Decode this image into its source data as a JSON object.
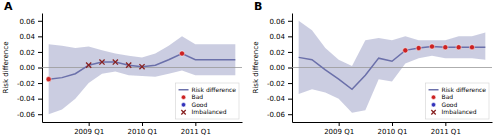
{
  "chart_data": [
    {
      "type": "line",
      "title": "A",
      "y_label": "Risk difference",
      "x": [
        0,
        1,
        2,
        3,
        4,
        5,
        6,
        7,
        8,
        9,
        10,
        11,
        12,
        13,
        14
      ],
      "xlim": [
        -0.5,
        14.5
      ],
      "xticks": [
        {
          "value": 3,
          "label": "2009 Q1"
        },
        {
          "value": 7,
          "label": "2010 Q1"
        },
        {
          "value": 11,
          "label": "2011 Q1"
        }
      ],
      "ylim": [
        -0.07,
        0.07
      ],
      "yticks": [
        -0.06,
        -0.04,
        -0.02,
        {
          "value": 0,
          "label": "0.00"
        },
        0.02,
        0.04,
        0.06
      ],
      "hlines": [
        0
      ],
      "legend": "lower right",
      "series": [
        {
          "name": "Risk difference",
          "type": "line",
          "color": "#6b70aa",
          "values": [
            -0.015,
            -0.013,
            -0.008,
            0.003,
            0.007,
            0.007,
            0.003,
            0.001,
            0.003,
            0.01,
            0.018,
            0.01,
            0.01,
            0.01,
            0.01
          ],
          "ci_upper": [
            0.03,
            0.028,
            0.025,
            0.027,
            0.022,
            0.018,
            0.015,
            0.013,
            0.018,
            0.028,
            0.04,
            0.03,
            0.03,
            0.03,
            0.03
          ],
          "ci_lower": [
            -0.06,
            -0.054,
            -0.04,
            -0.02,
            -0.008,
            -0.005,
            -0.01,
            -0.011,
            -0.012,
            -0.008,
            -0.004,
            -0.01,
            -0.01,
            -0.01,
            -0.01
          ]
        },
        {
          "name": "Bad",
          "type": "scatter",
          "color": "#cc2222",
          "marker": "circle",
          "x": [
            0,
            10
          ],
          "values": [
            -0.015,
            0.018
          ]
        },
        {
          "name": "Good",
          "type": "scatter",
          "color": "#3333bb",
          "marker": "circle",
          "x": [],
          "values": []
        },
        {
          "name": "Imbalanced",
          "type": "scatter",
          "color": "#882222",
          "marker": "x",
          "x": [
            3,
            4,
            5,
            6,
            7
          ],
          "values": [
            0.003,
            0.007,
            0.007,
            0.003,
            0.001
          ]
        }
      ]
    },
    {
      "type": "line",
      "title": "B",
      "y_label": "Risk difference",
      "x": [
        0,
        1,
        2,
        3,
        4,
        5,
        6,
        7,
        8,
        9,
        10,
        11,
        12,
        13,
        14
      ],
      "xlim": [
        -0.5,
        14.5
      ],
      "xticks": [
        {
          "value": 3,
          "label": "2009 Q1"
        },
        {
          "value": 7,
          "label": "2010 Q1"
        },
        {
          "value": 11,
          "label": "2011 Q1"
        }
      ],
      "ylim": [
        -0.07,
        0.07
      ],
      "yticks": [
        -0.06,
        -0.04,
        -0.02,
        {
          "value": 0,
          "label": "0.00"
        },
        0.02,
        0.04,
        0.06
      ],
      "hlines": [
        0
      ],
      "legend": "lower right",
      "series": [
        {
          "name": "Risk difference",
          "type": "line",
          "color": "#6b70aa",
          "values": [
            0.013,
            0.01,
            -0.003,
            -0.015,
            -0.028,
            -0.01,
            0.012,
            0.008,
            0.022,
            0.025,
            0.027,
            0.026,
            0.026,
            0.026,
            0.026
          ],
          "ci_upper": [
            0.06,
            0.048,
            0.025,
            0.01,
            0.002,
            0.035,
            0.038,
            0.035,
            0.04,
            0.035,
            0.035,
            0.035,
            0.04,
            0.04,
            0.045
          ],
          "ci_lower": [
            -0.034,
            -0.028,
            -0.032,
            -0.04,
            -0.058,
            -0.055,
            -0.015,
            -0.018,
            0.005,
            0.012,
            0.015,
            0.012,
            0.012,
            0.012,
            0.01
          ]
        },
        {
          "name": "Bad",
          "type": "scatter",
          "color": "#cc2222",
          "marker": "circle",
          "x": [
            8,
            9,
            10,
            11,
            12,
            13
          ],
          "values": [
            0.022,
            0.025,
            0.027,
            0.026,
            0.026,
            0.026
          ]
        },
        {
          "name": "Good",
          "type": "scatter",
          "color": "#3333bb",
          "marker": "circle",
          "x": [],
          "values": []
        },
        {
          "name": "Imbalanced",
          "type": "scatter",
          "color": "#882222",
          "marker": "x",
          "x": [],
          "values": []
        }
      ]
    }
  ]
}
